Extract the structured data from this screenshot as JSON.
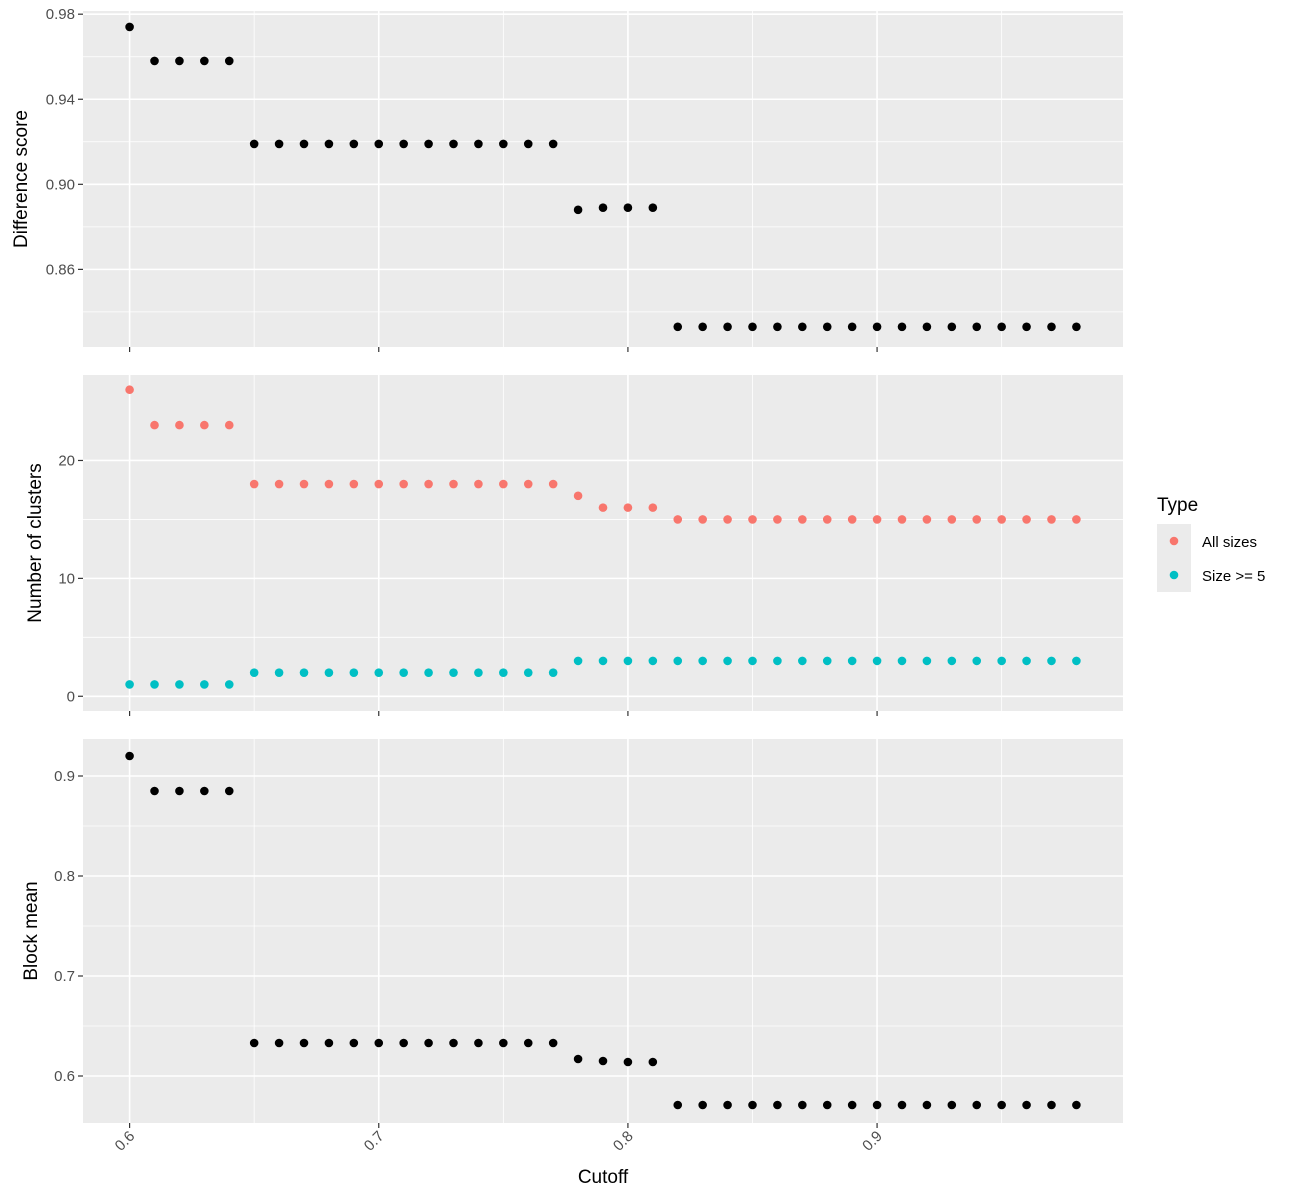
{
  "chart_data": {
    "type": "scatter",
    "xlabel": "Cutoff",
    "x_ticks": [
      "0.6",
      "0.7",
      "0.8",
      "0.9"
    ],
    "xlim": [
      0.5813,
      0.9987
    ],
    "x": [
      0.6,
      0.61,
      0.62,
      0.63,
      0.64,
      0.65,
      0.66,
      0.67,
      0.68,
      0.69,
      0.7,
      0.71,
      0.72,
      0.73,
      0.74,
      0.75,
      0.76,
      0.77,
      0.78,
      0.79,
      0.8,
      0.81,
      0.82,
      0.83,
      0.84,
      0.85,
      0.86,
      0.87,
      0.88,
      0.89,
      0.9,
      0.91,
      0.92,
      0.93,
      0.94,
      0.95,
      0.96,
      0.97,
      0.98
    ],
    "grid": true,
    "panels": [
      {
        "ylabel": "Difference score",
        "ylim": [
          0.8235,
          0.9815
        ],
        "y_ticks": [
          {
            "value": 0.86,
            "label": "0.86"
          },
          {
            "value": 0.9,
            "label": "0.90"
          },
          {
            "value": 0.94,
            "label": "0.94"
          },
          {
            "value": 0.98,
            "label": "0.98"
          }
        ],
        "series": [
          {
            "color": "#000000",
            "values": [
              0.974,
              0.958,
              0.958,
              0.958,
              0.958,
              0.919,
              0.919,
              0.919,
              0.919,
              0.919,
              0.919,
              0.919,
              0.919,
              0.919,
              0.919,
              0.919,
              0.919,
              0.919,
              0.888,
              0.889,
              0.889,
              0.889,
              0.833,
              0.833,
              0.833,
              0.833,
              0.833,
              0.833,
              0.833,
              0.833,
              0.833,
              0.833,
              0.833,
              0.833,
              0.833,
              0.833,
              0.833,
              0.833,
              0.833
            ]
          }
        ]
      },
      {
        "ylabel": "Number of clusters",
        "ylim": [
          -1.25,
          27.25
        ],
        "y_ticks": [
          {
            "value": 0,
            "label": "0"
          },
          {
            "value": 10,
            "label": "10"
          },
          {
            "value": 20,
            "label": "20"
          }
        ],
        "series": [
          {
            "name": "All sizes",
            "color": "#F8766D",
            "values": [
              26,
              23,
              23,
              23,
              23,
              18,
              18,
              18,
              18,
              18,
              18,
              18,
              18,
              18,
              18,
              18,
              18,
              18,
              17,
              16,
              16,
              16,
              15,
              15,
              15,
              15,
              15,
              15,
              15,
              15,
              15,
              15,
              15,
              15,
              15,
              15,
              15,
              15,
              15
            ]
          },
          {
            "name": "Size >= 5",
            "color": "#00BFC4",
            "values": [
              1,
              1,
              1,
              1,
              1,
              2,
              2,
              2,
              2,
              2,
              2,
              2,
              2,
              2,
              2,
              2,
              2,
              2,
              3,
              3,
              3,
              3,
              3,
              3,
              3,
              3,
              3,
              3,
              3,
              3,
              3,
              3,
              3,
              3,
              3,
              3,
              3,
              3,
              3
            ]
          }
        ]
      },
      {
        "ylabel": "Block mean",
        "ylim": [
          0.553,
          0.937
        ],
        "y_ticks": [
          {
            "value": 0.6,
            "label": "0.6"
          },
          {
            "value": 0.7,
            "label": "0.7"
          },
          {
            "value": 0.8,
            "label": "0.8"
          },
          {
            "value": 0.9,
            "label": "0.9"
          }
        ],
        "series": [
          {
            "color": "#000000",
            "values": [
              0.92,
              0.885,
              0.885,
              0.885,
              0.885,
              0.633,
              0.633,
              0.633,
              0.633,
              0.633,
              0.633,
              0.633,
              0.633,
              0.633,
              0.633,
              0.633,
              0.633,
              0.633,
              0.617,
              0.615,
              0.614,
              0.614,
              0.571,
              0.571,
              0.571,
              0.571,
              0.571,
              0.571,
              0.571,
              0.571,
              0.571,
              0.571,
              0.571,
              0.571,
              0.571,
              0.571,
              0.571,
              0.571,
              0.571
            ]
          }
        ]
      }
    ],
    "legend": {
      "title": "Type",
      "placement": "right",
      "items": [
        {
          "label": "All sizes",
          "color": "#F8766D"
        },
        {
          "label": "Size >= 5",
          "color": "#00BFC4"
        }
      ]
    }
  }
}
